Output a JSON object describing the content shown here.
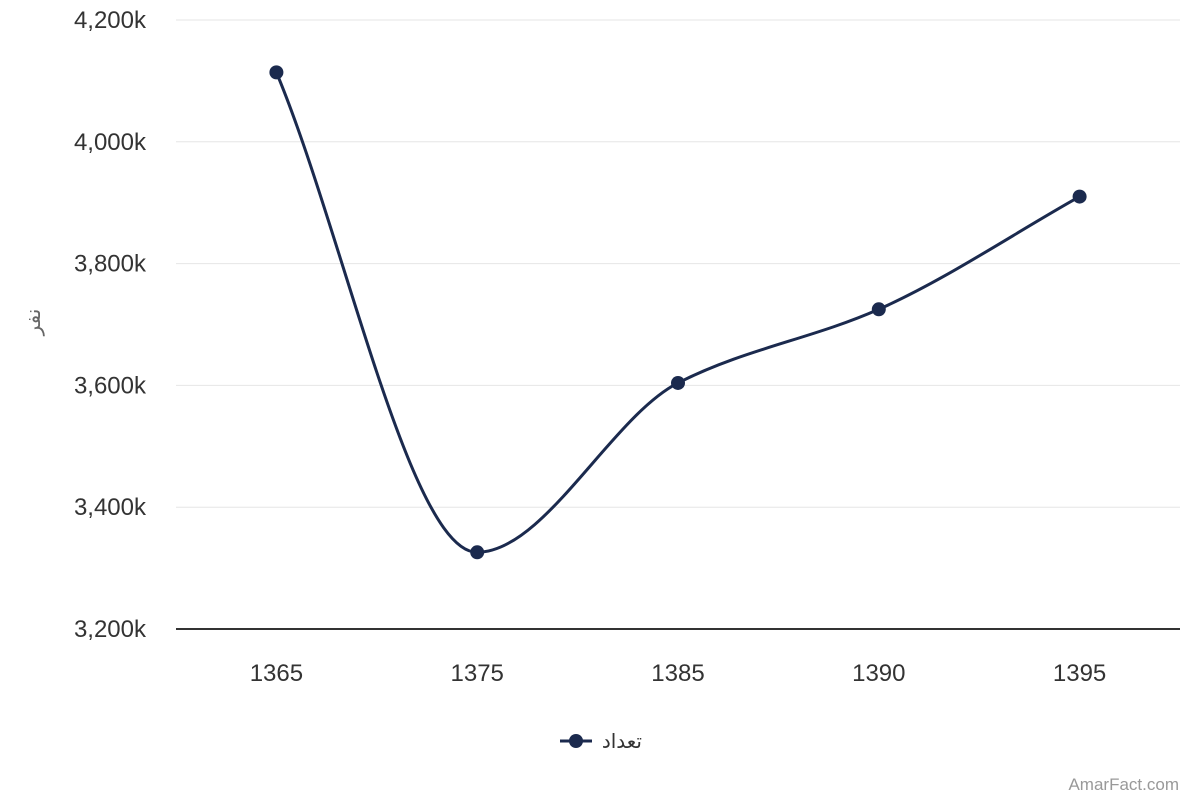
{
  "chart_data": {
    "type": "line",
    "title": "",
    "xlabel": "",
    "ylabel": "نفر",
    "categories": [
      "1365",
      "1375",
      "1385",
      "1390",
      "1395"
    ],
    "series": [
      {
        "name": "تعداد",
        "values": [
          4114,
          3326,
          3604,
          3725,
          3910
        ],
        "color": "#1b2a4e"
      }
    ],
    "ylim": [
      3200,
      4200
    ],
    "yticks": [
      3200,
      3400,
      3600,
      3800,
      4000,
      4200
    ],
    "ytick_labels": [
      "3,200k",
      "3,400k",
      "3,600k",
      "3,800k",
      "4,000k",
      "4,200k"
    ],
    "grid": true,
    "legend_position": "bottom-center",
    "smooth": true
  },
  "credit": "AmarFact.com",
  "colors": {
    "series": "#1b2a4e",
    "grid": "#e6e6e6",
    "axis": "#333333",
    "text": "#333333"
  }
}
